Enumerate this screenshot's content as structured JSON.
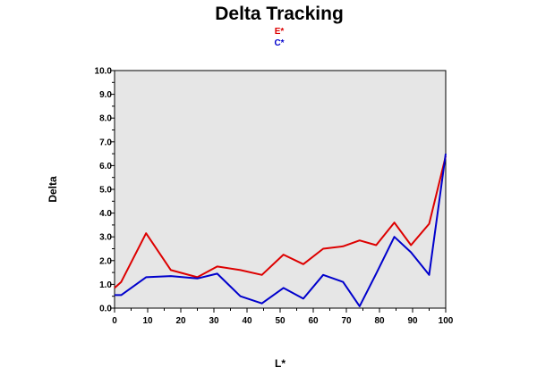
{
  "chart_data": {
    "type": "line",
    "title": "Delta Tracking",
    "xlabel": "L*",
    "ylabel": "Delta",
    "xlim": [
      0,
      100
    ],
    "ylim": [
      0,
      10
    ],
    "x_ticks": [
      "0",
      "10",
      "20",
      "30",
      "40",
      "50",
      "60",
      "70",
      "80",
      "90",
      "100"
    ],
    "y_ticks": [
      "0.0",
      "1.0",
      "2.0",
      "3.0",
      "4.0",
      "5.0",
      "6.0",
      "7.0",
      "8.0",
      "9.0",
      "10.0"
    ],
    "legend_position": "top-center",
    "plot_background": "#e6e6e6",
    "grid": false,
    "series": [
      {
        "name": "E*",
        "color": "#dd0000",
        "points": [
          [
            0,
            0.85
          ],
          [
            2,
            1.1
          ],
          [
            9.5,
            3.15
          ],
          [
            17,
            1.6
          ],
          [
            25,
            1.3
          ],
          [
            31,
            1.75
          ],
          [
            38,
            1.6
          ],
          [
            44.5,
            1.4
          ],
          [
            51,
            2.25
          ],
          [
            57,
            1.85
          ],
          [
            63,
            2.5
          ],
          [
            69,
            2.6
          ],
          [
            74,
            2.85
          ],
          [
            79,
            2.65
          ],
          [
            84.5,
            3.6
          ],
          [
            89.5,
            2.65
          ],
          [
            95,
            3.55
          ],
          [
            100,
            6.4
          ]
        ]
      },
      {
        "name": "C*",
        "color": "#0000cc",
        "points": [
          [
            0,
            0.55
          ],
          [
            2,
            0.55
          ],
          [
            9.5,
            1.3
          ],
          [
            17,
            1.35
          ],
          [
            25,
            1.25
          ],
          [
            31,
            1.45
          ],
          [
            38,
            0.5
          ],
          [
            44.5,
            0.2
          ],
          [
            51,
            0.85
          ],
          [
            57,
            0.4
          ],
          [
            63,
            1.4
          ],
          [
            69,
            1.1
          ],
          [
            74,
            0.08
          ],
          [
            79,
            1.45
          ],
          [
            84.5,
            3.0
          ],
          [
            89.5,
            2.35
          ],
          [
            95,
            1.4
          ],
          [
            100,
            6.5
          ]
        ]
      }
    ]
  }
}
